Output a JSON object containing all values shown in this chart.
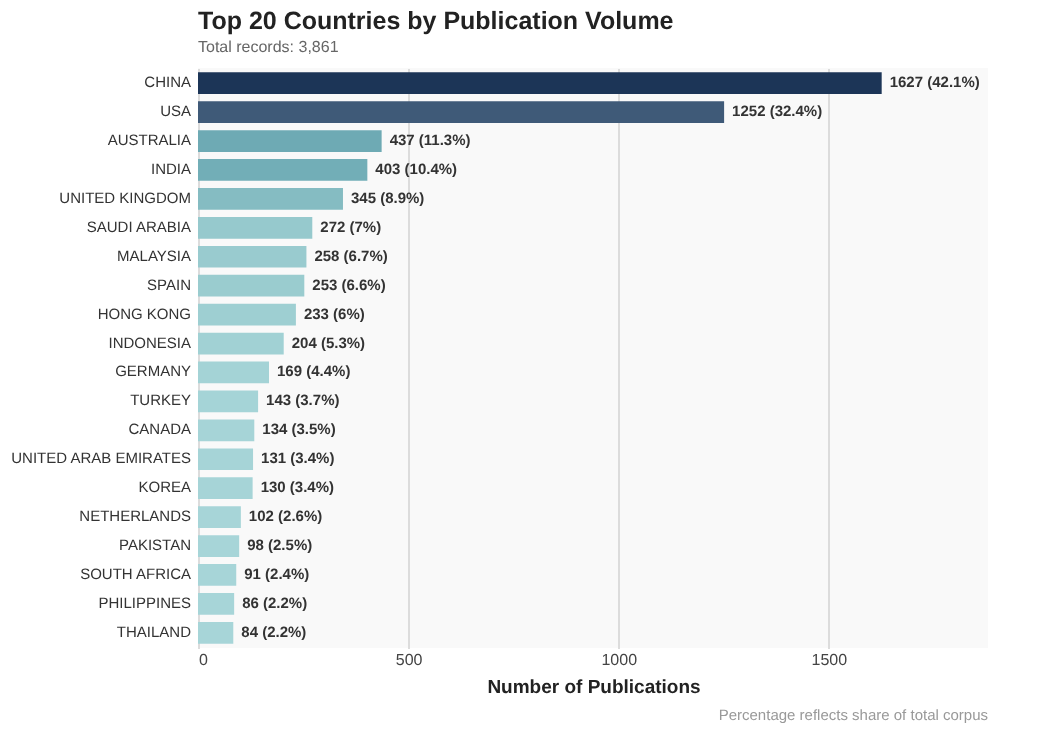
{
  "chart_data": {
    "type": "bar",
    "orientation": "horizontal",
    "title": "Top 20 Countries by Publication Volume",
    "subtitle": "Total records: 3,861",
    "xlabel": "Number of Publications",
    "categories": [
      "CHINA",
      "USA",
      "AUSTRALIA",
      "INDIA",
      "UNITED KINGDOM",
      "SAUDI ARABIA",
      "MALAYSIA",
      "SPAIN",
      "HONG KONG",
      "INDONESIA",
      "GERMANY",
      "TURKEY",
      "CANADA",
      "UNITED ARAB EMIRATES",
      "KOREA",
      "NETHERLANDS",
      "PAKISTAN",
      "SOUTH AFRICA",
      "PHILIPPINES",
      "THAILAND"
    ],
    "values": [
      1627,
      1252,
      437,
      403,
      345,
      272,
      258,
      253,
      233,
      204,
      169,
      143,
      134,
      131,
      130,
      102,
      98,
      91,
      86,
      84
    ],
    "value_labels": [
      "1627  (42.1%)",
      "1252  (32.4%)",
      "437  (11.3%)",
      "403  (10.4%)",
      "345  (8.9%)",
      "272  (7%)",
      "258  (6.7%)",
      "253  (6.6%)",
      "233  (6%)",
      "204  (5.3%)",
      "169  (4.4%)",
      "143  (3.7%)",
      "134  (3.5%)",
      "131  (3.4%)",
      "130  (3.4%)",
      "102  (2.6%)",
      "98  (2.5%)",
      "91  (2.4%)",
      "86  (2.2%)",
      "84  (2.2%)"
    ],
    "colors": [
      "#1c3557",
      "#3f5a78",
      "#6eaab4",
      "#72aeb7",
      "#85bcc2",
      "#96c9cd",
      "#99cbcf",
      "#9acccf",
      "#9ecfd2",
      "#a1d1d4",
      "#a4d3d6",
      "#a5d4d7",
      "#a6d4d7",
      "#a6d4d7",
      "#a6d4d7",
      "#a7d5d8",
      "#a7d5d8",
      "#a7d5d8",
      "#a7d5d8",
      "#a7d5d8"
    ],
    "xlim": [
      0,
      1880
    ],
    "xticks": [
      0,
      500,
      1000,
      1500
    ],
    "grid": "x",
    "annotations": [
      "Percentage reflects share of total corpus"
    ]
  }
}
